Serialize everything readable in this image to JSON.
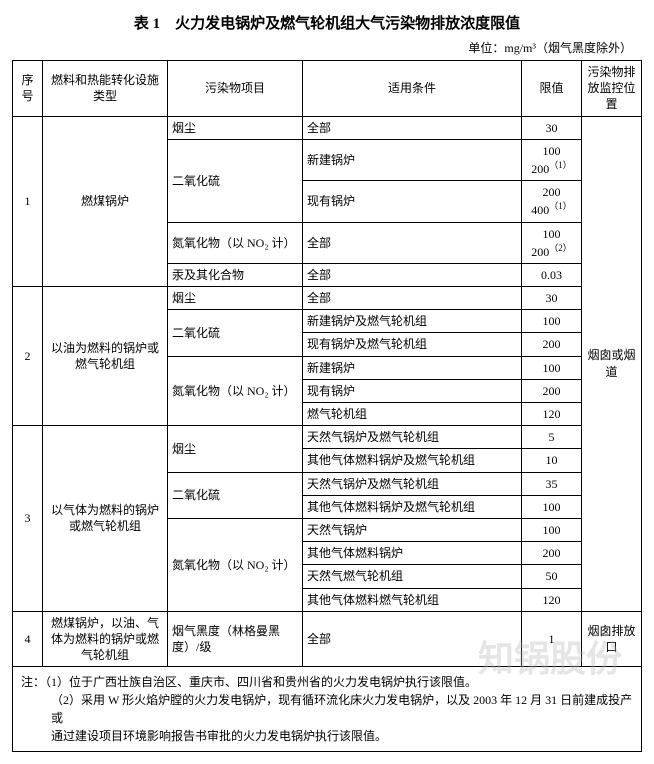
{
  "title": "表 1　火力发电锅炉及燃气轮机组大气污染物排放浓度限值",
  "unit_label": "单位：mg/m³（烟气黑度除外）",
  "headers": {
    "idx": "序号",
    "fuel": "燃料和热能转化设施类型",
    "pollutant": "污染物项目",
    "condition": "适用条件",
    "limit": "限值",
    "monitor": "污染物排放监控位置"
  },
  "monitor_label": "烟囱或烟道",
  "monitor_label2": "烟囱排放口",
  "sections": [
    {
      "idx": "1",
      "fuel": "燃煤锅炉",
      "rows": [
        {
          "pollutant": "烟尘",
          "condition": "全部",
          "limit": "30"
        },
        {
          "pollutant": "二氧化硫",
          "condition": "新建锅炉",
          "limit": "100\n200⁽¹⁾"
        },
        {
          "pollutant": "",
          "condition": "现有锅炉",
          "limit": "200\n400⁽¹⁾"
        },
        {
          "pollutant": "氮氧化物（以 NO₂ 计）",
          "condition": "全部",
          "limit": "100\n200⁽²⁾"
        },
        {
          "pollutant": "汞及其化合物",
          "condition": "全部",
          "limit": "0.03"
        }
      ]
    },
    {
      "idx": "2",
      "fuel": "以油为燃料的锅炉或燃气轮机组",
      "rows": [
        {
          "pollutant": "烟尘",
          "condition": "全部",
          "limit": "30"
        },
        {
          "pollutant": "二氧化硫",
          "condition": "新建锅炉及燃气轮机组",
          "limit": "100"
        },
        {
          "pollutant": "",
          "condition": "现有锅炉及燃气轮机组",
          "limit": "200"
        },
        {
          "pollutant": "氮氧化物（以 NO₂ 计）",
          "condition": "新建锅炉",
          "limit": "100"
        },
        {
          "pollutant": "",
          "condition": "现有锅炉",
          "limit": "200"
        },
        {
          "pollutant": "",
          "condition": "燃气轮机组",
          "limit": "120"
        }
      ]
    },
    {
      "idx": "3",
      "fuel": "以气体为燃料的锅炉或燃气轮机组",
      "rows": [
        {
          "pollutant": "烟尘",
          "condition": "天然气锅炉及燃气轮机组",
          "limit": "5"
        },
        {
          "pollutant": "",
          "condition": "其他气体燃料锅炉及燃气轮机组",
          "limit": "10"
        },
        {
          "pollutant": "二氧化硫",
          "condition": "天然气锅炉及燃气轮机组",
          "limit": "35"
        },
        {
          "pollutant": "",
          "condition": "其他气体燃料锅炉及燃气轮机组",
          "limit": "100"
        },
        {
          "pollutant": "氮氧化物（以 NO₂ 计）",
          "condition": "天然气锅炉",
          "limit": "100"
        },
        {
          "pollutant": "",
          "condition": "其他气体燃料锅炉",
          "limit": "200"
        },
        {
          "pollutant": "",
          "condition": "天然气燃气轮机组",
          "limit": "50"
        },
        {
          "pollutant": "",
          "condition": "其他气体燃料燃气轮机组",
          "limit": "120"
        }
      ]
    },
    {
      "idx": "4",
      "fuel": "燃煤锅炉，以油、气体为燃料的锅炉或燃气轮机组",
      "rows": [
        {
          "pollutant": "烟气黑度（林格曼黑度）/级",
          "condition": "全部",
          "limit": "1"
        }
      ]
    }
  ],
  "notes": {
    "prefix": "注：",
    "n1": "（1）位于广西壮族自治区、重庆市、四川省和贵州省的火力发电锅炉执行该限值。",
    "n2a": "（2）采用 W 形火焰炉膛的火力发电锅炉，现有循环流化床火力发电锅炉，以及 2003 年 12 月 31 日前建成投产或",
    "n2b": "通过建设项目环境影响报告书审批的火力发电锅炉执行该限值。"
  },
  "watermark": "知锅股份"
}
